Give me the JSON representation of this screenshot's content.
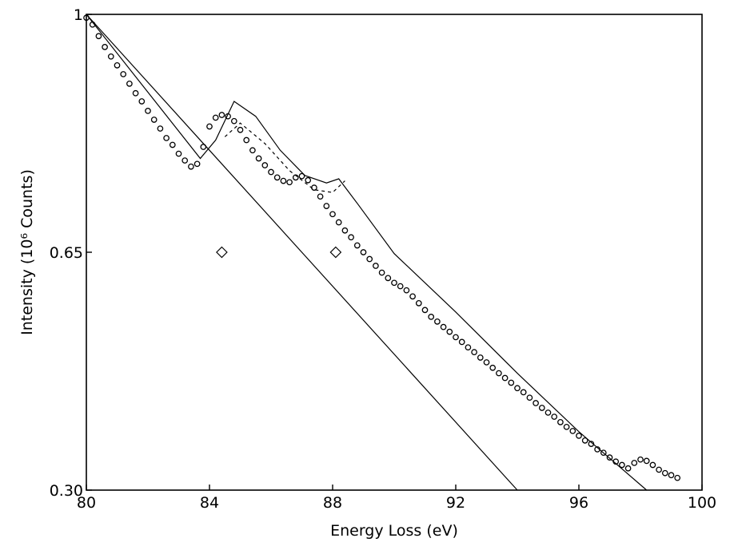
{
  "chart_data": {
    "type": "scatter",
    "xlabel": "Energy Loss (eV)",
    "ylabel": "Intensity (10⁶ Counts)",
    "xlim": [
      80,
      100
    ],
    "ylim": [
      0.3,
      1.0
    ],
    "x_ticks": [
      80,
      84,
      88,
      92,
      96,
      100
    ],
    "y_ticks": [
      0.3,
      0.65,
      1
    ],
    "x_tick_labels": [
      "80",
      "84",
      "88",
      "92",
      "96",
      "100"
    ],
    "y_tick_labels": [
      "0.30",
      "0.65",
      "1"
    ],
    "grid": false,
    "legend": "none",
    "series": [
      {
        "style": "open-circles",
        "x": [
          80.0,
          80.2,
          80.4,
          80.6,
          80.8,
          81.0,
          81.2,
          81.4,
          81.6,
          81.8,
          82.0,
          82.2,
          82.4,
          82.6,
          82.8,
          83.0,
          83.2,
          83.4,
          83.6,
          83.8,
          84.0,
          84.2,
          84.4,
          84.6,
          84.8,
          85.0,
          85.2,
          85.4,
          85.6,
          85.8,
          86.0,
          86.2,
          86.4,
          86.6,
          86.8,
          87.0,
          87.2,
          87.4,
          87.6,
          87.8,
          88.0,
          88.2,
          88.4,
          88.6,
          88.8,
          89.0,
          89.2,
          89.4,
          89.6,
          89.8,
          90.0,
          90.2,
          90.4,
          90.6,
          90.8,
          91.0,
          91.2,
          91.4,
          91.6,
          91.8,
          92.0,
          92.2,
          92.4,
          92.6,
          92.8,
          93.0,
          93.2,
          93.4,
          93.6,
          93.8,
          94.0,
          94.2,
          94.4,
          94.6,
          94.8,
          95.0,
          95.2,
          95.4,
          95.6,
          95.8,
          96.0,
          96.2,
          96.4,
          96.6,
          96.8,
          97.0,
          97.2,
          97.4,
          97.6,
          97.8,
          98.0,
          98.2,
          98.4,
          98.6,
          98.8,
          99.0,
          99.2
        ],
        "y": [
          0.995,
          0.985,
          0.968,
          0.952,
          0.938,
          0.925,
          0.912,
          0.898,
          0.884,
          0.872,
          0.858,
          0.845,
          0.832,
          0.818,
          0.808,
          0.795,
          0.785,
          0.776,
          0.78,
          0.805,
          0.835,
          0.848,
          0.852,
          0.85,
          0.843,
          0.83,
          0.815,
          0.8,
          0.788,
          0.778,
          0.768,
          0.76,
          0.755,
          0.753,
          0.76,
          0.762,
          0.756,
          0.745,
          0.732,
          0.718,
          0.706,
          0.694,
          0.682,
          0.672,
          0.66,
          0.65,
          0.64,
          0.63,
          0.62,
          0.612,
          0.605,
          0.6,
          0.594,
          0.585,
          0.575,
          0.565,
          0.555,
          0.548,
          0.54,
          0.533,
          0.525,
          0.518,
          0.51,
          0.503,
          0.495,
          0.488,
          0.48,
          0.472,
          0.465,
          0.458,
          0.45,
          0.444,
          0.436,
          0.428,
          0.421,
          0.414,
          0.408,
          0.4,
          0.393,
          0.387,
          0.38,
          0.373,
          0.368,
          0.36,
          0.355,
          0.348,
          0.342,
          0.337,
          0.332,
          0.34,
          0.345,
          0.343,
          0.337,
          0.33,
          0.325,
          0.322,
          0.318
        ]
      },
      {
        "style": "solid-line-fit",
        "x": [
          80.0,
          83.7,
          84.2,
          84.8,
          85.5,
          86.3,
          87.1,
          87.8,
          88.2,
          88.8,
          90.0,
          92.0,
          94.0,
          96.0,
          98.2
        ],
        "y": [
          1.0,
          0.788,
          0.815,
          0.872,
          0.85,
          0.8,
          0.763,
          0.752,
          0.758,
          0.722,
          0.648,
          0.562,
          0.472,
          0.386,
          0.3
        ]
      },
      {
        "style": "dashed-line",
        "x": [
          84.5,
          85.0,
          85.8,
          86.6,
          87.4,
          88.0,
          88.4
        ],
        "y": [
          0.82,
          0.84,
          0.81,
          0.77,
          0.742,
          0.738,
          0.755
        ]
      },
      {
        "style": "solid-line-background",
        "x": [
          80.0,
          94.0
        ],
        "y": [
          1.0,
          0.3
        ]
      },
      {
        "style": "open-diamonds",
        "x": [
          84.4,
          88.1
        ],
        "y": [
          0.65,
          0.65
        ]
      }
    ]
  }
}
